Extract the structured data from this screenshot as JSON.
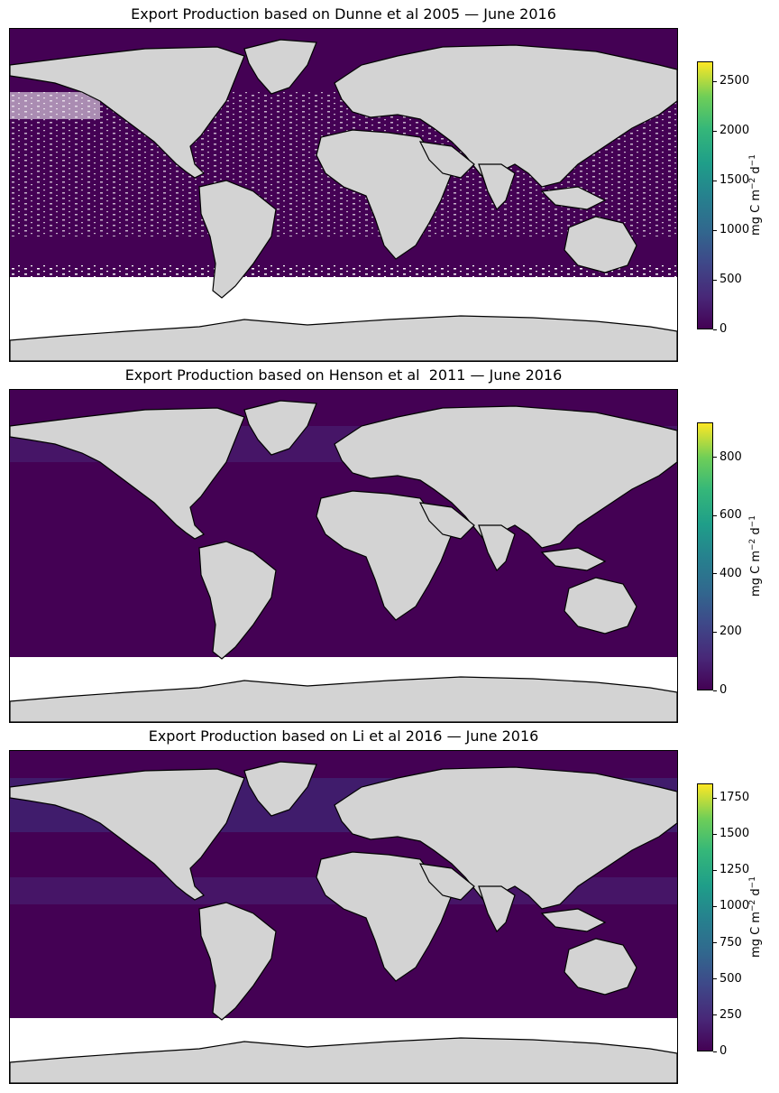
{
  "panels": [
    {
      "title": "Export Production based on Dunne et al 2005 — June 2016",
      "colorbar": {
        "label_prefix": "mg C m",
        "label_exp1": "−2",
        "label_mid": " d",
        "label_exp2": "−1",
        "min": 0,
        "max": 2700,
        "ticks": [
          0,
          500,
          1000,
          1500,
          2000,
          2500
        ],
        "colormap": "viridis"
      },
      "data_extent": "sparse coverage with gaps in subtropical gyres"
    },
    {
      "title": "Export Production based on Henson et al  2011 — June 2016",
      "colorbar": {
        "label_prefix": "mg C m",
        "label_exp1": "−2",
        "label_mid": " d",
        "label_exp2": "−1",
        "min": 0,
        "max": 920,
        "ticks": [
          0,
          200,
          400,
          600,
          800
        ],
        "colormap": "viridis"
      },
      "data_extent": "near-complete ocean coverage"
    },
    {
      "title": "Export Production based on Li et al 2016 — June 2016",
      "colorbar": {
        "label_prefix": "mg C m",
        "label_exp1": "−2",
        "label_mid": " d",
        "label_exp2": "−1",
        "min": 0,
        "max": 1850,
        "ticks": [
          0,
          250,
          500,
          750,
          1000,
          1250,
          1500,
          1750
        ],
        "colormap": "viridis"
      },
      "data_extent": "near-complete ocean coverage"
    }
  ],
  "colors": {
    "land": "#d3d3d3",
    "ocean_low": "#440154",
    "coast": "#000000",
    "nodata": "#ffffff"
  }
}
